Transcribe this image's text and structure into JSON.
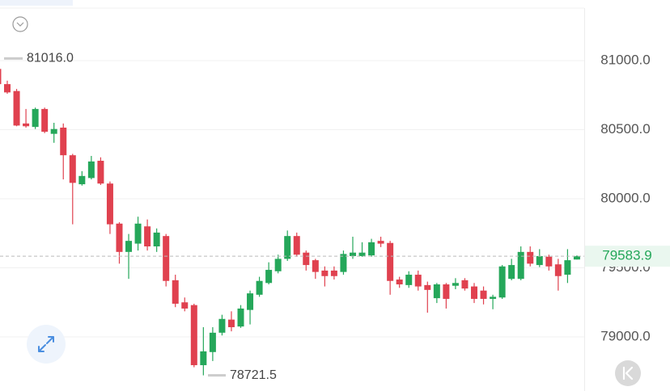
{
  "chart_data": {
    "type": "candlestick",
    "open": [
      80940,
      80830,
      80780,
      80545,
      80520,
      80650,
      80470,
      80515,
      80315,
      80105,
      80150,
      80275,
      80110,
      79820,
      79615,
      79675,
      79800,
      79655,
      79730,
      79410,
      79250,
      79230,
      78795,
      78890,
      79030,
      79125,
      79075,
      79195,
      79305,
      79390,
      79475,
      79565,
      79730,
      79610,
      79555,
      79480,
      79480,
      79470,
      79585,
      79585,
      79590,
      79695,
      79680,
      79415,
      79375,
      79450,
      79375,
      79280,
      79380,
      79370,
      79410,
      79365,
      79335,
      79275,
      79285,
      79420,
      79420,
      79615,
      79520,
      79580,
      79525,
      79450,
      79560
    ],
    "high": [
      81016,
      80855,
      80795,
      80650,
      80660,
      80660,
      80550,
      80545,
      80325,
      80200,
      80310,
      80300,
      80125,
      79830,
      79745,
      79870,
      79850,
      79785,
      79745,
      79450,
      79285,
      79240,
      79070,
      79070,
      79160,
      79185,
      79230,
      79335,
      79435,
      79540,
      79595,
      79770,
      79755,
      79625,
      79565,
      79510,
      79510,
      79625,
      79725,
      79685,
      79710,
      79725,
      79695,
      79435,
      79475,
      79480,
      79400,
      79390,
      79390,
      79425,
      79425,
      79390,
      79365,
      79305,
      79520,
      79565,
      79655,
      79655,
      79635,
      79595,
      79565,
      79635,
      79590
    ],
    "low": [
      80785,
      80760,
      80525,
      80515,
      80505,
      80475,
      80405,
      80140,
      79815,
      80095,
      80140,
      80100,
      79745,
      79530,
      79420,
      79625,
      79625,
      79615,
      79365,
      79215,
      79185,
      78780,
      78721.5,
      78825,
      79010,
      79040,
      79065,
      79090,
      79290,
      79380,
      79460,
      79550,
      79580,
      79480,
      79420,
      79365,
      79415,
      79450,
      79565,
      79580,
      79580,
      79650,
      79305,
      79355,
      79355,
      79335,
      79175,
      79245,
      79205,
      79345,
      79335,
      79245,
      79235,
      79200,
      79275,
      79410,
      79410,
      79510,
      79505,
      79480,
      79335,
      79390,
      79560
    ],
    "close": [
      80830,
      80770,
      80530,
      80525,
      80650,
      80485,
      80505,
      80315,
      80115,
      80165,
      80270,
      80110,
      79815,
      79615,
      79695,
      79820,
      79655,
      79755,
      79405,
      79240,
      79205,
      78795,
      78895,
      79030,
      79130,
      79070,
      79205,
      79315,
      79405,
      79485,
      79565,
      79730,
      79595,
      79520,
      79470,
      79440,
      79440,
      79600,
      79610,
      79610,
      79685,
      79675,
      79405,
      79380,
      79450,
      79365,
      79340,
      79380,
      79275,
      79390,
      79350,
      79275,
      79275,
      79290,
      79510,
      79520,
      79615,
      79530,
      79585,
      79510,
      79440,
      79555,
      79583.9
    ],
    "up_color": "#25a75a",
    "down_color": "#e0414f",
    "ylim": [
      78608,
      81439
    ],
    "yticks": [
      {
        "value": 79000,
        "label": "79000.0"
      },
      {
        "value": 79500,
        "label": "79500.0"
      },
      {
        "value": 80000,
        "label": "80000.0"
      },
      {
        "value": 80500,
        "label": "80500.0"
      },
      {
        "value": 81000,
        "label": "81000.0"
      }
    ],
    "grid": true,
    "last_price": 79583.9,
    "high_marker": {
      "value": 81016,
      "label": "81016.0"
    },
    "low_marker": 78721.5
  }
}
